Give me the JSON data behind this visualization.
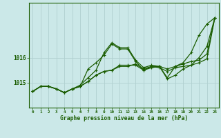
{
  "title": "Graphe pression niveau de la mer (hPa)",
  "background_color": "#cbe8e8",
  "grid_color": "#b0d0d0",
  "line_color": "#1a5c00",
  "xlim": [
    -0.5,
    23.5
  ],
  "ylim": [
    1014.0,
    1018.2
  ],
  "yticks": [
    1015,
    1016
  ],
  "xticks": [
    0,
    1,
    2,
    3,
    4,
    5,
    6,
    7,
    8,
    9,
    10,
    11,
    12,
    13,
    14,
    15,
    16,
    17,
    18,
    19,
    20,
    21,
    22,
    23
  ],
  "series": [
    [
      1014.65,
      1014.85,
      1014.85,
      1014.75,
      1014.6,
      1014.75,
      1014.85,
      1015.05,
      1015.3,
      1015.45,
      1015.5,
      1015.7,
      1015.7,
      1015.7,
      1015.5,
      1015.6,
      1015.65,
      1015.15,
      1015.3,
      1015.55,
      1015.7,
      1015.8,
      1015.95,
      1017.6
    ],
    [
      1014.65,
      1014.85,
      1014.85,
      1014.75,
      1014.6,
      1014.75,
      1014.85,
      1015.55,
      1015.8,
      1016.1,
      1016.55,
      1016.35,
      1016.35,
      1015.85,
      1015.5,
      1015.65,
      1015.6,
      1015.45,
      1015.6,
      1015.65,
      1015.7,
      1016.0,
      1016.45,
      1017.6
    ],
    [
      1014.65,
      1014.85,
      1014.85,
      1014.75,
      1014.6,
      1014.75,
      1014.9,
      1015.2,
      1015.5,
      1016.2,
      1016.6,
      1016.4,
      1016.4,
      1015.9,
      1015.6,
      1015.7,
      1015.65,
      1015.2,
      1015.65,
      1015.8,
      1016.2,
      1016.9,
      1017.35,
      1017.6
    ],
    [
      1014.65,
      1014.85,
      1014.85,
      1014.75,
      1014.6,
      1014.75,
      1014.85,
      1015.05,
      1015.3,
      1015.45,
      1015.5,
      1015.65,
      1015.65,
      1015.75,
      1015.55,
      1015.65,
      1015.65,
      1015.55,
      1015.65,
      1015.75,
      1015.85,
      1015.9,
      1016.15,
      1017.6
    ]
  ]
}
